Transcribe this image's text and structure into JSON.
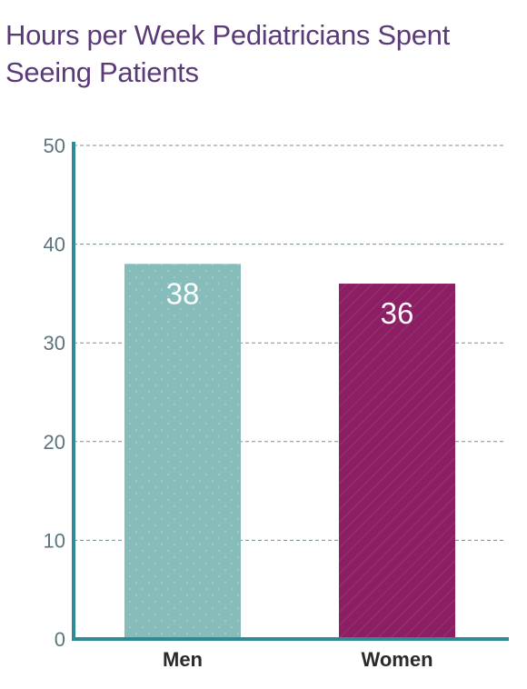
{
  "chart_data": {
    "type": "bar",
    "title_lines": [
      "Hours per Week Pediatricians Spent",
      "Seeing Patients"
    ],
    "categories": [
      "Men",
      "Women"
    ],
    "values": [
      38,
      36
    ],
    "value_labels": [
      "38",
      "36"
    ],
    "ylim": [
      0,
      50
    ],
    "yticks": [
      0,
      10,
      20,
      30,
      40,
      50
    ],
    "grid": true,
    "bar_colors": [
      "#86bdba",
      "#8c1f63"
    ]
  },
  "colors": {
    "title": "#5b3a78",
    "axis": "#2e8b96",
    "grid": "#7a8d96",
    "tick_text": "#5c7480"
  }
}
